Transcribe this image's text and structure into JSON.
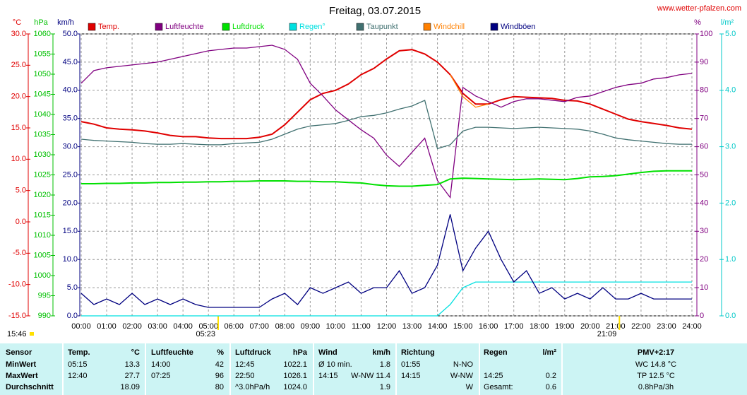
{
  "chart_data": {
    "type": "line",
    "title": "Freitag, 03.07.2015",
    "source": "www.wetter-pfalzen.com",
    "updated": "15:46",
    "xlim": [
      0,
      24
    ],
    "xticks": [
      {
        "value": 0,
        "label": "00:00"
      },
      {
        "value": 1,
        "label": "01:00"
      },
      {
        "value": 2,
        "label": "02:00"
      },
      {
        "value": 3,
        "label": "03:00"
      },
      {
        "value": 4,
        "label": "04:00"
      },
      {
        "value": 5,
        "label": "05:00"
      },
      {
        "value": 6,
        "label": "06:00"
      },
      {
        "value": 7,
        "label": "07:00"
      },
      {
        "value": 8,
        "label": "08:00"
      },
      {
        "value": 9,
        "label": "09:00"
      },
      {
        "value": 10,
        "label": "10:00"
      },
      {
        "value": 11,
        "label": "11:00"
      },
      {
        "value": 12,
        "label": "12:00"
      },
      {
        "value": 13,
        "label": "13:00"
      },
      {
        "value": 14,
        "label": "14:00"
      },
      {
        "value": 15,
        "label": "15:00"
      },
      {
        "value": 16,
        "label": "16:00"
      },
      {
        "value": 17,
        "label": "17:00"
      },
      {
        "value": 18,
        "label": "18:00"
      },
      {
        "value": 19,
        "label": "19:00"
      },
      {
        "value": 20,
        "label": "20:00"
      },
      {
        "value": 21,
        "label": "21:00"
      },
      {
        "value": 22,
        "label": "22:00"
      },
      {
        "value": 23,
        "label": "23:00"
      },
      {
        "value": 24,
        "label": "24:00"
      }
    ],
    "grid": true,
    "annotations": [
      {
        "text": "05:23",
        "x": 5.383
      },
      {
        "text": "21:09",
        "x": 21.15
      }
    ],
    "axes": {
      "temp": {
        "label": "°C",
        "color": "#e00000",
        "lim": [
          -15,
          30
        ],
        "ticks": [
          {
            "value": -15,
            "label": "-15.0"
          },
          {
            "value": -10,
            "label": "-10.0"
          },
          {
            "value": -5,
            "label": "-5.0"
          },
          {
            "value": 0,
            "label": "0.0"
          },
          {
            "value": 5,
            "label": "5.0"
          },
          {
            "value": 10,
            "label": "10.0"
          },
          {
            "value": 15,
            "label": "15.0"
          },
          {
            "value": 20,
            "label": "20.0"
          },
          {
            "value": 25,
            "label": "25.0"
          },
          {
            "value": 30,
            "label": "30.0"
          }
        ]
      },
      "pres": {
        "label": "hPa",
        "color": "#00c000",
        "lim": [
          990,
          1060
        ],
        "ticks": [
          990,
          995,
          1000,
          1005,
          1010,
          1015,
          1020,
          1025,
          1030,
          1035,
          1040,
          1045,
          1050,
          1055,
          1060
        ]
      },
      "wind": {
        "label": "km/h",
        "color": "#000080",
        "lim": [
          0,
          50
        ],
        "ticks": [
          {
            "value": 0,
            "label": "0.0"
          },
          {
            "value": 5,
            "label": "5.0"
          },
          {
            "value": 10,
            "label": "10.0"
          },
          {
            "value": 15,
            "label": "15.0"
          },
          {
            "value": 20,
            "label": "20.0"
          },
          {
            "value": 25,
            "label": "25.0"
          },
          {
            "value": 30,
            "label": "30.0"
          },
          {
            "value": 35,
            "label": "35.0"
          },
          {
            "value": 40,
            "label": "40.0"
          },
          {
            "value": 45,
            "label": "45.0"
          },
          {
            "value": 50,
            "label": "50.0"
          }
        ]
      },
      "hum": {
        "label": "%",
        "color": "#800080",
        "lim": [
          0,
          100
        ],
        "ticks": [
          0,
          10,
          20,
          30,
          40,
          50,
          60,
          70,
          80,
          90,
          100
        ]
      },
      "rain": {
        "label": "l/m²",
        "color": "#00c8c8",
        "lim": [
          0,
          5
        ],
        "ticks": [
          {
            "value": 0,
            "label": "0.0"
          },
          {
            "value": 1,
            "label": "1.0"
          },
          {
            "value": 2,
            "label": "2.0"
          },
          {
            "value": 3,
            "label": "3.0"
          },
          {
            "value": 4,
            "label": "4.0"
          },
          {
            "value": 5,
            "label": "5.0"
          }
        ]
      }
    },
    "x": [
      0,
      0.5,
      1,
      1.5,
      2,
      2.5,
      3,
      3.5,
      4,
      4.5,
      5,
      5.5,
      6,
      6.5,
      7,
      7.5,
      8,
      8.5,
      9,
      9.5,
      10,
      10.5,
      11,
      11.5,
      12,
      12.5,
      13,
      13.5,
      14,
      14.5,
      15,
      15.5,
      16,
      16.5,
      17,
      17.5,
      18,
      18.5,
      19,
      19.5,
      20,
      20.5,
      21,
      21.5,
      22,
      22.5,
      23,
      23.5,
      24
    ],
    "series": [
      {
        "name": "Temp.",
        "color": "#e00000",
        "axis": "temp",
        "values": [
          16.0,
          15.6,
          15.0,
          14.8,
          14.7,
          14.5,
          14.2,
          13.8,
          13.6,
          13.6,
          13.4,
          13.3,
          13.3,
          13.3,
          13.5,
          14.0,
          15.5,
          17.5,
          19.5,
          20.5,
          21.0,
          22.0,
          23.5,
          24.5,
          26.0,
          27.3,
          27.5,
          26.8,
          25.5,
          23.5,
          20.5,
          18.8,
          18.8,
          19.5,
          20.0,
          19.9,
          19.8,
          19.7,
          19.4,
          19.3,
          18.8,
          18.0,
          17.2,
          16.4,
          16.0,
          15.7,
          15.4,
          15.0,
          14.8
        ]
      },
      {
        "name": "Luftfeuchte",
        "color": "#800080",
        "axis": "hum",
        "values": [
          82.5,
          87,
          88,
          88.5,
          89,
          89.5,
          90,
          91,
          92,
          93,
          94,
          94.5,
          95,
          95,
          95.5,
          96,
          94.5,
          91,
          82.5,
          78,
          73,
          69.5,
          66,
          63,
          57,
          53,
          58,
          63,
          48,
          42,
          81,
          78,
          76,
          74,
          76,
          77,
          77,
          76.5,
          76,
          77.5,
          78,
          79.5,
          81,
          82,
          82.5,
          84,
          84.5,
          85.5,
          86
        ]
      },
      {
        "name": "Luftdruck",
        "color": "#00e000",
        "axis": "pres",
        "values": [
          1022.8,
          1022.8,
          1022.9,
          1022.9,
          1023.0,
          1023.0,
          1023.1,
          1023.1,
          1023.2,
          1023.2,
          1023.3,
          1023.3,
          1023.4,
          1023.4,
          1023.5,
          1023.5,
          1023.5,
          1023.4,
          1023.4,
          1023.3,
          1023.3,
          1023.1,
          1023.0,
          1022.6,
          1022.3,
          1022.2,
          1022.2,
          1022.4,
          1022.6,
          1024.0,
          1024.2,
          1024.1,
          1024.0,
          1023.9,
          1023.8,
          1023.9,
          1024.0,
          1023.9,
          1023.8,
          1024.1,
          1024.5,
          1024.6,
          1024.8,
          1025.2,
          1025.6,
          1025.9,
          1026.0,
          1026.0,
          1026.0
        ]
      },
      {
        "name": "Regen°",
        "color": "#00e0e0",
        "axis": "rain",
        "values": [
          0,
          0,
          0,
          0,
          0,
          0,
          0,
          0,
          0,
          0,
          0,
          0,
          0,
          0,
          0,
          0,
          0,
          0,
          0,
          0,
          0,
          0,
          0,
          0,
          0,
          0,
          0,
          0,
          0,
          0.2,
          0.5,
          0.6,
          0.6,
          0.6,
          0.6,
          0.6,
          0.6,
          0.6,
          0.6,
          0.6,
          0.6,
          0.6,
          0.6,
          0.6,
          0.6,
          0.6,
          0.6,
          0.6,
          0.6
        ]
      },
      {
        "name": "Taupunkt",
        "color": "#407070",
        "axis": "temp",
        "values": [
          13.2,
          13.0,
          12.9,
          12.8,
          12.7,
          12.5,
          12.4,
          12.4,
          12.5,
          12.4,
          12.3,
          12.3,
          12.5,
          12.6,
          12.7,
          13.2,
          14.0,
          14.8,
          15.3,
          15.5,
          15.7,
          16.2,
          16.8,
          17.0,
          17.4,
          18.0,
          18.5,
          19.4,
          11.7,
          12.3,
          14.5,
          15.1,
          15.1,
          15.0,
          14.9,
          15.0,
          15.1,
          15.0,
          14.9,
          14.8,
          14.5,
          14.0,
          13.4,
          13.1,
          12.9,
          12.7,
          12.5,
          12.4,
          12.4
        ]
      },
      {
        "name": "Windchill",
        "color": "#ff8000",
        "axis": "temp",
        "values": [
          null,
          null,
          null,
          null,
          null,
          null,
          null,
          null,
          null,
          null,
          null,
          null,
          null,
          null,
          null,
          null,
          null,
          null,
          null,
          null,
          null,
          null,
          null,
          null,
          null,
          null,
          null,
          null,
          null,
          23.5,
          20.0,
          18.3,
          18.8,
          null,
          null,
          null,
          null,
          null,
          null,
          null,
          null,
          null,
          null,
          null,
          null,
          null,
          null,
          null,
          null
        ]
      },
      {
        "name": "Windböen",
        "color": "#000080",
        "axis": "wind",
        "values": [
          4,
          2,
          3,
          2,
          4,
          2,
          3,
          2,
          3,
          2,
          1.5,
          1.5,
          1.5,
          1.5,
          1.5,
          3,
          4,
          2,
          5,
          4,
          5,
          6,
          4,
          5,
          5,
          8,
          4,
          5,
          9,
          18,
          8,
          12,
          15,
          10,
          6,
          8,
          4,
          5,
          3,
          4,
          3,
          5,
          3,
          3,
          4,
          3,
          3,
          3,
          3
        ]
      }
    ]
  },
  "table": {
    "header": {
      "label": "Sensor",
      "t_time": "Temp.",
      "t_val": "°C",
      "h_time": "Luftfeuchte",
      "h_val": "%",
      "p_time": "Luftdruck",
      "p_val": "hPa",
      "w_time": "Wind",
      "w_val": "km/h",
      "d_time": "Richtung",
      "r_time": "Regen",
      "r_val": "l/m²",
      "pmv": "PMV+2:17"
    },
    "rows": [
      {
        "label": "MinWert",
        "t_time": "05:15",
        "t_val": 13.3,
        "h_time": "14:00",
        "h_val": 42,
        "p_time": "12:45",
        "p_val": 1022.1,
        "w_time": "Ø 10 min.",
        "w_val": 1.8,
        "d_time": "01:55",
        "d_val": "N-NO",
        "pmv": "WC 14.8 °C"
      },
      {
        "label": "MaxWert",
        "t_time": "12:40",
        "t_val": 27.7,
        "h_time": "07:25",
        "h_val": 96,
        "p_time": "22:50",
        "p_val": 1026.1,
        "w_time": "14:15",
        "w_val": "W-NW 11.4",
        "d_time": "14:15",
        "d_val": "W-NW",
        "r_time": "14:25",
        "r_val": 0.2,
        "pmv": "TP 12.5 °C"
      },
      {
        "label": "Durchschnitt",
        "t_val": 18.09,
        "h_val": 80,
        "p_time": "^3.0hPa/h",
        "p_val": "1024.0",
        "w_val": 1.9,
        "d_val": "W",
        "r_time": "Gesamt:",
        "r_val": 0.6,
        "pmv": "0.8hPa/3h"
      }
    ]
  }
}
